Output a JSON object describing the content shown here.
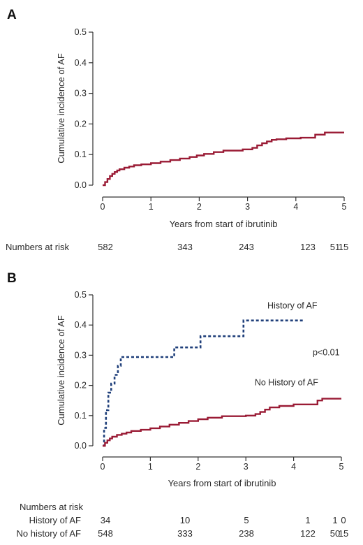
{
  "chart_data": [
    {
      "panel": "A",
      "type": "line",
      "xlabel": "Years from start of ibrutinib",
      "ylabel": "Cumulative incidence of AF",
      "xlim": [
        0,
        5
      ],
      "ylim": [
        0,
        0.5
      ],
      "xticks": [
        "0",
        "1",
        "2",
        "3",
        "4",
        "5"
      ],
      "yticks": [
        "0.0",
        "0.1",
        "0.2",
        "0.3",
        "0.4",
        "0.5"
      ],
      "grid": false,
      "series": [
        {
          "color": "#9a1b35",
          "style": "solid step",
          "x": [
            0,
            0.05,
            0.1,
            0.15,
            0.2,
            0.25,
            0.3,
            0.35,
            0.45,
            0.55,
            0.65,
            0.8,
            1.0,
            1.2,
            1.4,
            1.6,
            1.8,
            1.95,
            2.1,
            2.3,
            2.5,
            2.9,
            3.1,
            3.2,
            3.3,
            3.4,
            3.5,
            3.6,
            3.8,
            4.1,
            4.4,
            4.6,
            5.0
          ],
          "y": [
            0.0,
            0.01,
            0.02,
            0.03,
            0.037,
            0.043,
            0.048,
            0.052,
            0.057,
            0.061,
            0.065,
            0.068,
            0.072,
            0.077,
            0.082,
            0.087,
            0.092,
            0.097,
            0.102,
            0.108,
            0.113,
            0.117,
            0.122,
            0.13,
            0.137,
            0.143,
            0.148,
            0.15,
            0.153,
            0.155,
            0.165,
            0.172,
            0.172
          ]
        }
      ],
      "risk_table": {
        "title": "Numbers at risk",
        "rows": [
          {
            "label": "",
            "values": [
              "582",
              "343",
              "243",
              "123",
              "51",
              "15"
            ]
          }
        ]
      }
    },
    {
      "panel": "B",
      "type": "line",
      "xlabel": "Years from start of ibrutinib",
      "ylabel": "Cumulative incidence of AF",
      "xlim": [
        0,
        5
      ],
      "ylim": [
        0,
        0.5
      ],
      "xticks": [
        "0",
        "1",
        "2",
        "3",
        "4",
        "5"
      ],
      "yticks": [
        "0.0",
        "0.1",
        "0.2",
        "0.3",
        "0.4",
        "0.5"
      ],
      "grid": false,
      "series": [
        {
          "name": "History of AF",
          "color": "#1f3f7a",
          "style": "dashed step",
          "x": [
            0,
            0.03,
            0.07,
            0.12,
            0.18,
            0.25,
            0.32,
            0.38,
            1.5,
            2.05,
            2.95,
            4.2
          ],
          "y": [
            0.0,
            0.059,
            0.118,
            0.176,
            0.206,
            0.235,
            0.265,
            0.294,
            0.326,
            0.363,
            0.415,
            0.415
          ]
        },
        {
          "name": "No History of AF",
          "color": "#9a1b35",
          "style": "solid step",
          "x": [
            0,
            0.05,
            0.1,
            0.15,
            0.2,
            0.3,
            0.4,
            0.5,
            0.6,
            0.8,
            1.0,
            1.2,
            1.4,
            1.6,
            1.8,
            2.0,
            2.2,
            2.5,
            3.0,
            3.2,
            3.3,
            3.4,
            3.5,
            3.7,
            4.0,
            4.5,
            4.6,
            5.0
          ],
          "y": [
            0.0,
            0.01,
            0.018,
            0.024,
            0.03,
            0.036,
            0.04,
            0.044,
            0.049,
            0.053,
            0.058,
            0.064,
            0.07,
            0.076,
            0.082,
            0.088,
            0.093,
            0.098,
            0.1,
            0.105,
            0.112,
            0.12,
            0.127,
            0.132,
            0.137,
            0.15,
            0.156,
            0.156
          ]
        }
      ],
      "annotations": [
        {
          "text": "History of AF",
          "x": 3.45,
          "y": 0.455,
          "anchor": "start"
        },
        {
          "text": "No History of AF",
          "x": 3.85,
          "y": 0.2,
          "anchor": "middle"
        },
        {
          "text": "p<0.01",
          "x": 4.4,
          "y": 0.3,
          "anchor": "start"
        }
      ],
      "risk_table": {
        "title": "Numbers at risk",
        "rows": [
          {
            "label": "History of AF",
            "values": [
              "34",
              "10",
              "5",
              "1",
              "1",
              "0"
            ]
          },
          {
            "label": "No history of AF",
            "values": [
              "548",
              "333",
              "238",
              "122",
              "50",
              "15"
            ]
          }
        ]
      }
    }
  ]
}
